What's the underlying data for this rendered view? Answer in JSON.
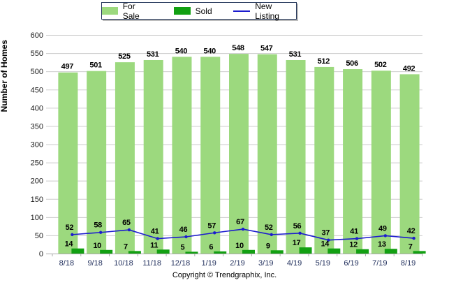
{
  "chart_data": {
    "type": "bar",
    "title": "",
    "xlabel": "",
    "ylabel": "Number of Homes",
    "ylim": [
      0,
      600
    ],
    "yticks": [
      0,
      50,
      100,
      150,
      200,
      250,
      300,
      350,
      400,
      450,
      500,
      550,
      600
    ],
    "grid": true,
    "legend_position": "top-center",
    "categories": [
      "8/18",
      "9/18",
      "10/18",
      "11/18",
      "12/18",
      "1/19",
      "2/19",
      "3/19",
      "4/19",
      "5/19",
      "6/19",
      "7/19",
      "8/19"
    ],
    "series": [
      {
        "name": "For Sale",
        "type": "bar",
        "color": "#9CD97E",
        "values": [
          497,
          501,
          525,
          531,
          540,
          540,
          548,
          547,
          531,
          512,
          506,
          502,
          492
        ]
      },
      {
        "name": "Sold",
        "type": "bar",
        "color": "#12A012",
        "values": [
          14,
          10,
          7,
          11,
          5,
          6,
          10,
          9,
          17,
          14,
          12,
          13,
          7
        ]
      },
      {
        "name": "New Listing",
        "type": "line",
        "color": "#1C1CCE",
        "values": [
          52,
          58,
          65,
          41,
          46,
          57,
          67,
          52,
          56,
          37,
          41,
          49,
          42
        ]
      }
    ],
    "colors": {
      "gridline": "#CBCBCB",
      "axis_line": "#ABABAB",
      "value_label": "#000000",
      "y_tick_label": "#1A1A1A",
      "x_tick_label": "#23315E",
      "legend_border": "#24365A"
    }
  },
  "footer": {
    "copyright": "Copyright © Trendgraphix, Inc."
  }
}
